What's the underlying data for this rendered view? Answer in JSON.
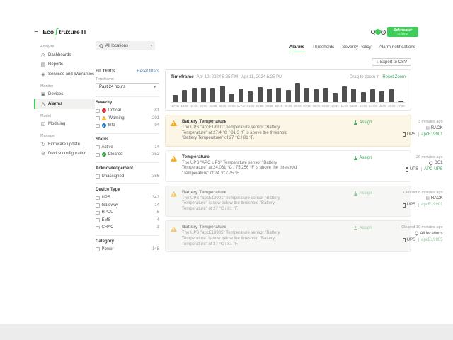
{
  "header": {
    "logo_part1": "Eco",
    "logo_part2": "truxure IT",
    "location_filter": "All locations",
    "icons": [
      {
        "name": "search"
      },
      {
        "name": "help"
      },
      {
        "name": "notifications",
        "badge": "9"
      },
      {
        "name": "announcements"
      },
      {
        "name": "gear"
      }
    ],
    "brand_line1": "Schneider",
    "brand_line2": "Electric"
  },
  "colors": {
    "brand_green": "#3dcd58",
    "link_green": "#3da45a",
    "reset_link_blue": "#4e7fae",
    "warning_amber": "#f2a71b",
    "critical_red": "#d9232e",
    "info_blue": "#2079c7",
    "cleared_green": "#33a24a",
    "bar_gray": "#4f4f4f"
  },
  "sidebar": {
    "sections": [
      {
        "label": "Analyze",
        "items": [
          {
            "label": "Dashboards",
            "icon": "dashboards"
          },
          {
            "label": "Reports",
            "icon": "reports"
          },
          {
            "label": "Services and Warranties",
            "icon": "services"
          }
        ]
      },
      {
        "label": "Monitor",
        "items": [
          {
            "label": "Devices",
            "icon": "devices"
          },
          {
            "label": "Alarms",
            "icon": "alarms-nav",
            "state": "selected"
          }
        ]
      },
      {
        "label": "Model",
        "items": [
          {
            "label": "Modeling",
            "icon": "modeling"
          }
        ]
      },
      {
        "label": "Manage",
        "items": [
          {
            "label": "Firmware update",
            "icon": "firmware"
          },
          {
            "label": "Device configuration",
            "icon": "device-config"
          }
        ]
      }
    ]
  },
  "tabs": [
    {
      "label": "Alarms",
      "state": "active"
    },
    {
      "label": "Thresholds"
    },
    {
      "label": "Severity Policy"
    },
    {
      "label": "Alarm notifications"
    }
  ],
  "toolbar": {
    "export_label": "Export to CSV"
  },
  "filters": {
    "title": "FILTERS",
    "reset_label": "Reset filters",
    "timeframe_label": "Timeframe",
    "timeframe_value": "Past 24 hours",
    "groups": [
      {
        "label": "Severity",
        "options": [
          {
            "label": "Critical",
            "icon": "critical",
            "count": "81"
          },
          {
            "label": "Warning",
            "icon": "warning",
            "count": "291"
          },
          {
            "label": "Info",
            "icon": "info",
            "count": "94"
          }
        ]
      },
      {
        "label": "Status",
        "options": [
          {
            "label": "Active",
            "count": "14"
          },
          {
            "label": "Cleared",
            "icon": "cleared",
            "count": "352"
          }
        ]
      },
      {
        "label": "Acknowledgement",
        "options": [
          {
            "label": "Unassigned",
            "count": "366"
          }
        ]
      },
      {
        "label": "Device Type",
        "options": [
          {
            "label": "UPS",
            "count": "342"
          },
          {
            "label": "Gateway",
            "count": "14"
          },
          {
            "label": "RPDU",
            "count": "5"
          },
          {
            "label": "EMS",
            "count": "4"
          },
          {
            "label": "CRAC",
            "count": "3"
          }
        ]
      },
      {
        "label": "Category",
        "options": [
          {
            "label": "Power",
            "count": "148"
          }
        ]
      }
    ]
  },
  "chart_card": {
    "title": "Timeframe",
    "range": "Apr 10, 2024 5:25 PM  -  Apr 11, 2024 5:25 PM",
    "hint": "Drag to zoom in",
    "reset_label": "Reset Zoom"
  },
  "chart_data": {
    "type": "bar",
    "title": "Timeframe",
    "x_range_label": "Apr 10, 2024 5:25 PM - Apr 11, 2024 5:25 PM",
    "categories": [
      "17:00",
      "18:00",
      "19:00",
      "20:00",
      "21:00",
      "22:00",
      "23:00",
      "11 Apr",
      "01:00",
      "02:00",
      "03:00",
      "04:00",
      "05:00",
      "06:00",
      "07:00",
      "08:00",
      "09:00",
      "10:00",
      "11:00",
      "12:00",
      "13:00",
      "14:00",
      "15:00",
      "16:00",
      "17:00"
    ],
    "values": [
      10,
      17,
      20,
      20,
      20,
      23,
      12,
      19,
      15,
      21,
      19,
      20,
      17,
      27,
      20,
      18,
      20,
      13,
      22,
      19,
      14,
      18,
      15,
      18,
      1
    ],
    "ylim": [
      0,
      30
    ],
    "grid": false,
    "bar_color": "#4f4f4f",
    "legend": null
  },
  "alarms": [
    {
      "severity": "warning",
      "state": "active-highlight",
      "title": "Battery Temperature",
      "description": "The UPS \"apcE19901\" Temperature sensor \"Battery Temperature\" at 27.4 °C / 81.3 °F is above the threshold \"Battery Temperature\" of 27 °C / 81 °F.",
      "assign_label": "Assign",
      "time": "3 minutes ago",
      "location": "RACK",
      "location_icon": "rack",
      "device_type": "UPS",
      "device_name": "apcE19901"
    },
    {
      "severity": "warning",
      "state": "active",
      "title": "Temperature",
      "description": "The UPS \"APC UPS\" Temperature sensor \"Battery Temperature\" at 24.031 °C / 75.256 °F is above the threshold \"Temperature\" of 24 °C / 75 °F.",
      "assign_label": "Assign",
      "time": "26 minutes ago",
      "location": "DC1",
      "location_icon": "pin",
      "device_type": "UPS",
      "device_name": "APC UPS"
    },
    {
      "severity": "cleared-warning",
      "state": "cleared",
      "title": "Battery Temperature",
      "description": "The UPS \"apcE19901\" Temperature sensor \"Battery Temperature\" is now below the threshold \"Battery Temperature\" of 27 °C / 81 °F.",
      "assign_label": "Assign",
      "time": "Cleared 8 minutes ago",
      "location": "RACK",
      "location_icon": "rack",
      "device_type": "UPS",
      "device_name": "apcE19901"
    },
    {
      "severity": "cleared-warning",
      "state": "cleared",
      "title": "Battery Temperature",
      "description": "The UPS \"apcE19905\" Temperature sensor \"Battery Temperature\" is now below the threshold \"Battery Temperature\" of 27 °C / 81 °F.",
      "assign_label": "Assign",
      "time": "Cleared 10 minutes ago",
      "location": "All locations",
      "location_icon": "pin",
      "device_type": "UPS",
      "device_name": "apcE19905"
    }
  ]
}
